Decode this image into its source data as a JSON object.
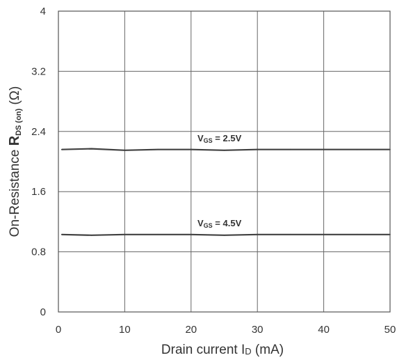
{
  "chart_data": {
    "type": "line",
    "title": "",
    "xlabel": {
      "prefix": "Drain current I",
      "sub": "D",
      "suffix": " (mA)"
    },
    "ylabel": {
      "prefix": "On-Resistance ",
      "main": "R",
      "sub": "DS (on)",
      "suffix": " (Ω)"
    },
    "xlim": [
      0,
      50
    ],
    "ylim": [
      0,
      4
    ],
    "x_ticks": [
      0,
      10,
      20,
      30,
      40,
      50
    ],
    "x_tick_labels": [
      "0",
      "10",
      "20",
      "30",
      "40",
      "50"
    ],
    "y_ticks": [
      0,
      0.8,
      1.6,
      2.4,
      3.2,
      4
    ],
    "y_tick_labels": [
      "0",
      "0.8",
      "1.6",
      "2.4",
      "3.2",
      "4"
    ],
    "grid": true,
    "legend": "none",
    "series": [
      {
        "annotation": {
          "main": "V",
          "sub": "GS",
          "rest": " = 2.5V"
        },
        "x": [
          0.5,
          5,
          10,
          15,
          20,
          25,
          30,
          35,
          40,
          45,
          50
        ],
        "values": [
          2.16,
          2.17,
          2.15,
          2.16,
          2.16,
          2.15,
          2.16,
          2.16,
          2.16,
          2.16,
          2.16
        ],
        "color": "#404040"
      },
      {
        "annotation": {
          "main": "V",
          "sub": "GS",
          "rest": " = 4.5V"
        },
        "x": [
          0.5,
          5,
          10,
          15,
          20,
          25,
          30,
          35,
          40,
          45,
          50
        ],
        "values": [
          1.03,
          1.02,
          1.03,
          1.03,
          1.03,
          1.02,
          1.03,
          1.03,
          1.03,
          1.03,
          1.03
        ],
        "color": "#404040"
      }
    ]
  }
}
